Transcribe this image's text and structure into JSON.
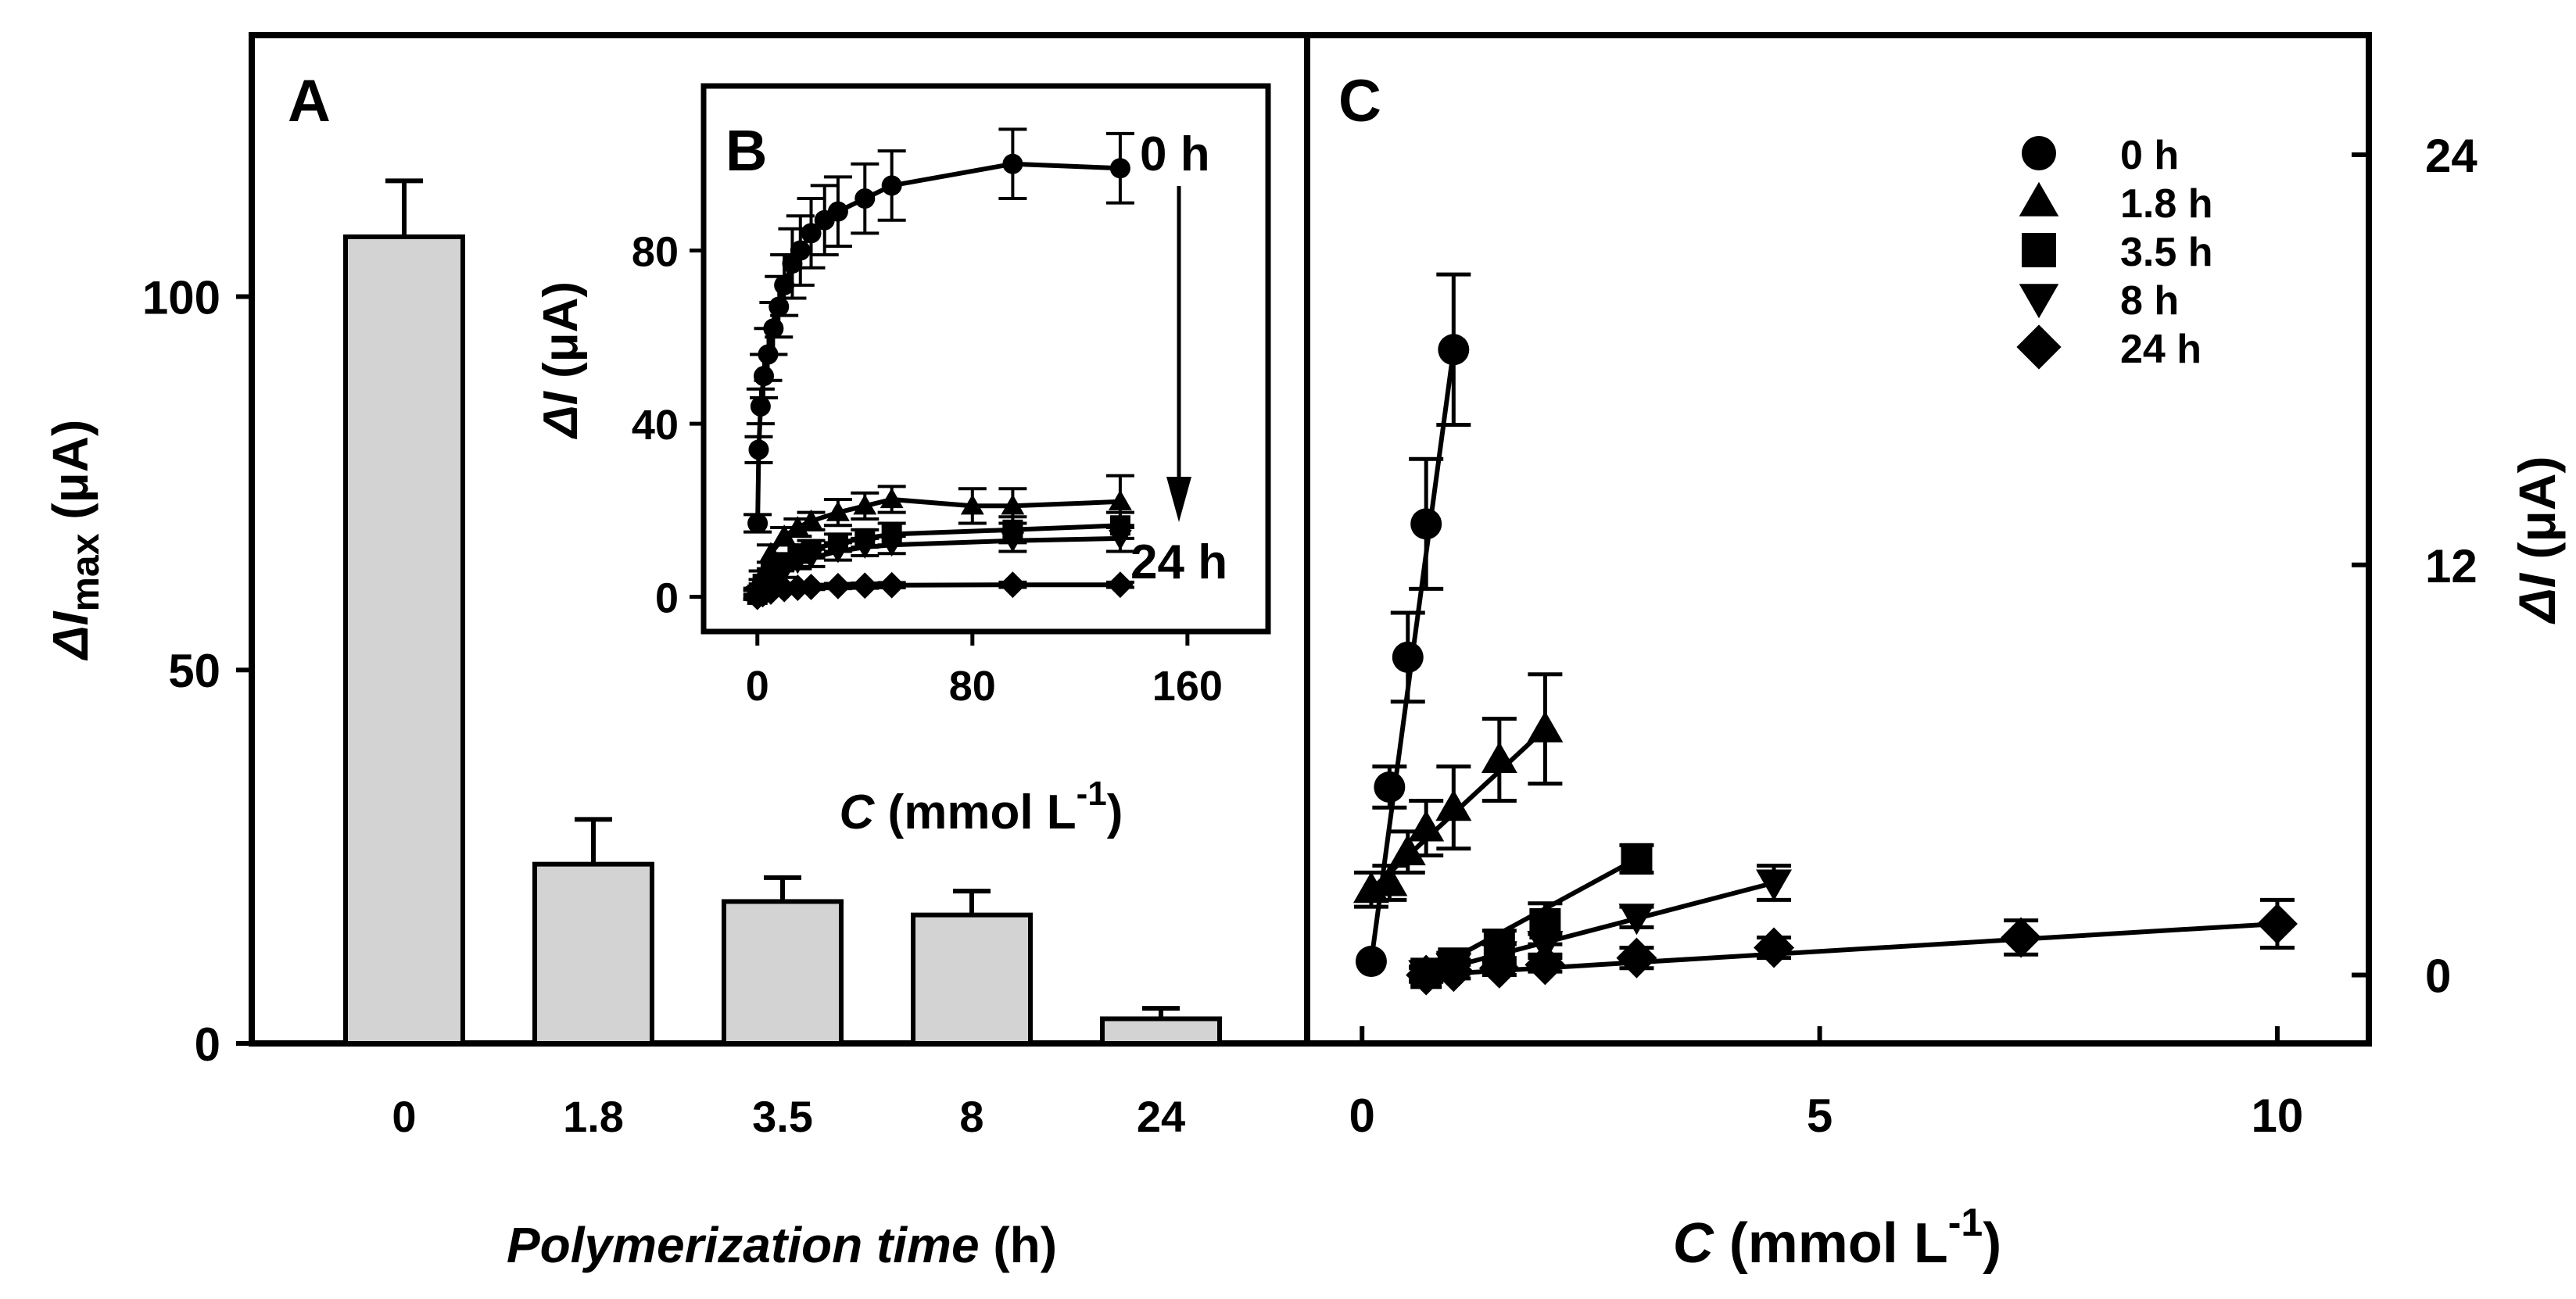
{
  "chart_data": [
    {
      "panel": "A",
      "type": "bar",
      "panel_label": "A",
      "categories": [
        "0",
        "1.8",
        "3.5",
        "8",
        "24"
      ],
      "values": [
        108,
        24,
        19,
        17.2,
        3.3
      ],
      "errors": [
        7.5,
        6,
        3.2,
        3.2,
        1.4
      ],
      "ylim": [
        0,
        135
      ],
      "yticks": [
        0,
        50,
        100
      ],
      "ylabel": {
        "italic": "ΔI",
        "sub": "max",
        "rest": " (μA)"
      },
      "xlabel": {
        "italic": "Polymerization time",
        "rest": " (h)"
      },
      "bar_color": "#d3d3d3"
    },
    {
      "panel": "B",
      "type": "line",
      "panel_label": "B",
      "xlim": [
        -20,
        190
      ],
      "ylim": [
        -8,
        118
      ],
      "xticks": [
        0,
        80,
        160
      ],
      "yticks": [
        0,
        40,
        80
      ],
      "xlabel": {
        "italic": "C",
        "rest": " (mmol L",
        "sup": "-1",
        "end": ")"
      },
      "ylabel": {
        "italic": "ΔI",
        "rest": " (μA)"
      },
      "annotations": {
        "top": "0 h",
        "bottom": "24 h"
      },
      "series": [
        {
          "name": "0 h",
          "x": [
            0.1,
            0.5,
            1.2,
            2.4,
            4,
            6,
            8,
            10,
            13,
            16,
            20,
            25,
            30,
            40,
            50,
            95,
            135
          ],
          "y": [
            17,
            34,
            44,
            51,
            56,
            62,
            67,
            72,
            77,
            80,
            84,
            87,
            89,
            92,
            95,
            100,
            99
          ],
          "err": [
            2,
            3,
            4,
            5,
            6,
            6,
            7,
            7,
            8,
            8,
            8,
            8,
            8,
            8,
            8,
            8,
            8
          ]
        },
        {
          "name": "1.8 h",
          "x": [
            0,
            2,
            5,
            10,
            15,
            20,
            30,
            40,
            50,
            80,
            95,
            135
          ],
          "y": [
            1,
            5,
            10,
            14,
            16,
            17.5,
            19.5,
            21,
            22.5,
            21,
            21,
            22
          ],
          "err": [
            1,
            1,
            2,
            2,
            2,
            2,
            3,
            3,
            3,
            4,
            4,
            6
          ]
        },
        {
          "name": "3.5 h",
          "x": [
            0,
            2,
            5,
            10,
            15,
            20,
            30,
            40,
            50,
            95,
            135
          ],
          "y": [
            0.5,
            3,
            5.5,
            8,
            10,
            11,
            12.5,
            13.5,
            14.5,
            15.5,
            16.5
          ],
          "err": [
            1,
            1,
            1,
            1.5,
            2,
            2,
            2,
            2,
            2.5,
            3,
            3
          ]
        },
        {
          "name": "8 h",
          "x": [
            0,
            2,
            5,
            10,
            15,
            20,
            30,
            40,
            50,
            95,
            135
          ],
          "y": [
            0.5,
            2,
            4,
            6,
            8,
            9,
            10.5,
            11.5,
            12,
            13,
            13.5
          ],
          "err": [
            1,
            1,
            1,
            1.5,
            1.5,
            2,
            2,
            2,
            2,
            2.5,
            3
          ]
        },
        {
          "name": "24 h",
          "x": [
            0,
            2,
            5,
            10,
            15,
            20,
            30,
            40,
            50,
            95,
            135
          ],
          "y": [
            0,
            0.6,
            1.2,
            1.8,
            2.1,
            2.3,
            2.5,
            2.6,
            2.7,
            2.8,
            2.8
          ],
          "err": [
            0.6,
            0.6,
            0.6,
            0.6,
            0.6,
            0.6,
            0.6,
            0.6,
            0.6,
            0.6,
            0.6
          ]
        }
      ]
    },
    {
      "panel": "C",
      "type": "line",
      "panel_label": "C",
      "xlim": [
        -0.6,
        11
      ],
      "ylim": [
        -2,
        27.5
      ],
      "xticks": [
        0,
        5,
        10
      ],
      "yticks": [
        0,
        12,
        24
      ],
      "yaxis_side": "right",
      "xlabel": {
        "italic": "C",
        "rest": " (mmol L",
        "sup": "-1",
        "end": ")"
      },
      "ylabel": {
        "italic": "ΔI",
        "rest": " (μA)"
      },
      "legend_position": "top-right",
      "series": [
        {
          "name": "0 h",
          "marker": "circle",
          "x": [
            0.1,
            0.3,
            0.5,
            0.7,
            1.0
          ],
          "y": [
            0.4,
            5.5,
            9.3,
            13.2,
            18.3
          ],
          "err": [
            0,
            0.6,
            1.3,
            1.9,
            2.2
          ],
          "line": [
            [
              0.1,
              0.4
            ],
            [
              1.0,
              18.3
            ]
          ]
        },
        {
          "name": "1.8 h",
          "marker": "triangle-up",
          "x": [
            0.1,
            0.3,
            0.5,
            0.7,
            1.0,
            1.5,
            2.0
          ],
          "y": [
            2.5,
            2.7,
            3.6,
            4.3,
            4.9,
            6.3,
            7.2
          ],
          "err": [
            0.5,
            0.5,
            0.6,
            0.8,
            1.2,
            1.2,
            1.6
          ],
          "line": [
            [
              0.1,
              2.5
            ],
            [
              2.0,
              7.2
            ]
          ]
        },
        {
          "name": "3.5 h",
          "marker": "square",
          "x": [
            0.7,
            1.0,
            1.5,
            2.0,
            3.0
          ],
          "y": [
            0.05,
            0.35,
            0.9,
            1.5,
            3.4
          ],
          "err": [
            0.2,
            0.3,
            0.4,
            0.6,
            0.4
          ],
          "line": [
            [
              0.7,
              0.05
            ],
            [
              3.0,
              3.4
            ]
          ]
        },
        {
          "name": "8 h",
          "marker": "triangle-down",
          "x": [
            0.7,
            1.0,
            1.5,
            2.0,
            3.0,
            4.5
          ],
          "y": [
            0.05,
            0.25,
            0.6,
            0.9,
            1.7,
            2.7
          ],
          "err": [
            0.2,
            0.2,
            0.3,
            0.3,
            0.3,
            0.5
          ],
          "line": [
            [
              0.7,
              0.05
            ],
            [
              4.5,
              2.7
            ]
          ]
        },
        {
          "name": "24 h",
          "marker": "diamond",
          "x": [
            0.7,
            1.0,
            1.5,
            2.0,
            3.0,
            4.5,
            7.2,
            10.0
          ],
          "y": [
            0.0,
            0.1,
            0.2,
            0.3,
            0.5,
            0.8,
            1.1,
            1.5
          ],
          "err": [
            0.2,
            0.2,
            0.2,
            0.2,
            0.3,
            0.3,
            0.5,
            0.7
          ],
          "line": [
            [
              0.7,
              0.0
            ],
            [
              10.0,
              1.5
            ]
          ]
        }
      ]
    }
  ]
}
